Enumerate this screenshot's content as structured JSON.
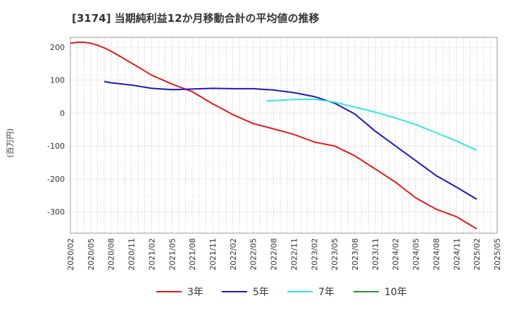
{
  "chart_data": {
    "type": "line",
    "title": "[3174]  当期純利益12か月移動合計の平均値の推移",
    "ylabel": "(百万円)",
    "xlabel": "",
    "ylim": [
      -365,
      230
    ],
    "yticks": [
      200,
      100,
      0,
      -100,
      -200,
      -300
    ],
    "grid": true,
    "legend_position": "bottom",
    "x_ticks": [
      "2020/02",
      "2020/05",
      "2020/08",
      "2020/11",
      "2021/02",
      "2021/05",
      "2021/08",
      "2021/11",
      "2022/02",
      "2022/05",
      "2022/08",
      "2022/11",
      "2023/02",
      "2023/05",
      "2023/08",
      "2023/11",
      "2024/02",
      "2024/05",
      "2024/08",
      "2024/11",
      "2025/02",
      "2025/05"
    ],
    "series": [
      {
        "name": "3年",
        "color": "#e31a1c",
        "x": [
          "2020/02",
          "2020/03",
          "2020/04",
          "2020/05",
          "2020/06",
          "2020/07",
          "2020/08",
          "2020/11",
          "2021/02",
          "2021/05",
          "2021/08",
          "2021/11",
          "2022/02",
          "2022/05",
          "2022/08",
          "2022/11",
          "2023/02",
          "2023/05",
          "2023/08",
          "2023/11",
          "2024/02",
          "2024/05",
          "2024/08",
          "2024/11",
          "2025/02"
        ],
        "values": [
          212,
          215,
          215,
          212,
          206,
          198,
          188,
          152,
          115,
          88,
          65,
          28,
          -5,
          -32,
          -48,
          -65,
          -88,
          -100,
          -130,
          -170,
          -210,
          -258,
          -292,
          -315,
          -352
        ]
      },
      {
        "name": "5年",
        "color": "#1a1ab4",
        "x": [
          "2020/07",
          "2020/08",
          "2020/11",
          "2021/02",
          "2021/05",
          "2021/08",
          "2021/11",
          "2022/02",
          "2022/05",
          "2022/08",
          "2022/11",
          "2023/02",
          "2023/05",
          "2023/08",
          "2023/11",
          "2024/02",
          "2024/05",
          "2024/08",
          "2024/11",
          "2025/02"
        ],
        "values": [
          96,
          92,
          85,
          75,
          71,
          73,
          75,
          74,
          74,
          70,
          62,
          50,
          30,
          -3,
          -55,
          -100,
          -145,
          -190,
          -225,
          -262
        ]
      },
      {
        "name": "7年",
        "color": "#33e6e6",
        "x": [
          "2022/07",
          "2022/08",
          "2022/11",
          "2023/02",
          "2023/05",
          "2023/08",
          "2023/11",
          "2024/02",
          "2024/05",
          "2024/08",
          "2024/11",
          "2025/02"
        ],
        "values": [
          37,
          38,
          41,
          42,
          33,
          18,
          3,
          -15,
          -35,
          -60,
          -85,
          -113
        ]
      },
      {
        "name": "10年",
        "color": "#2e8b2e",
        "x": [],
        "values": []
      }
    ]
  }
}
